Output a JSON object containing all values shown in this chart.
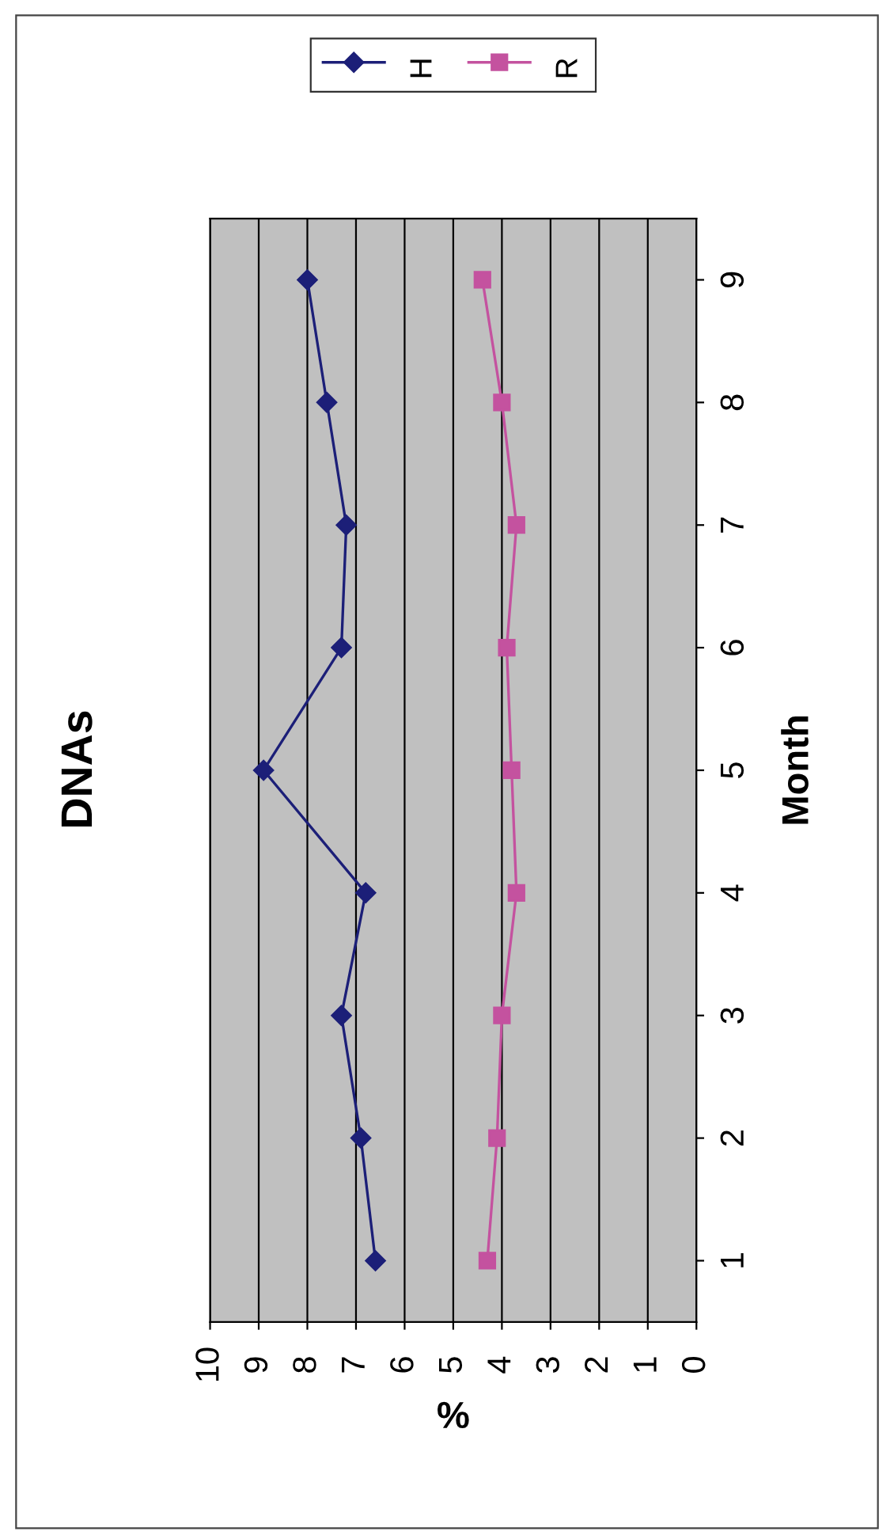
{
  "chart_data": {
    "type": "line",
    "title": "DNAs",
    "xlabel": "%",
    "ylabel": "Month",
    "series": [
      {
        "name": "H",
        "color": "#1c1f78",
        "marker": "diamond",
        "x": [
          6.6,
          6.9,
          7.3,
          6.8,
          8.9,
          7.3,
          7.2,
          7.6,
          8.0
        ],
        "values": [
          1,
          2,
          3,
          4,
          5,
          6,
          7,
          8,
          9
        ]
      },
      {
        "name": "R",
        "color": "#c4529f",
        "marker": "square",
        "x": [
          4.3,
          4.1,
          4.0,
          3.7,
          3.8,
          3.9,
          3.7,
          4.0,
          4.4
        ],
        "values": [
          1,
          2,
          3,
          4,
          5,
          6,
          7,
          8,
          9
        ]
      }
    ],
    "xlim": [
      10,
      0
    ],
    "xticks": [
      0,
      1,
      2,
      3,
      4,
      5,
      6,
      7,
      8,
      9,
      10
    ],
    "ylim": [
      0.5,
      9.5
    ],
    "yticks": [
      1,
      2,
      3,
      4,
      5,
      6,
      7,
      8,
      9
    ],
    "grid": "x",
    "legend": "top",
    "line_style": "solid"
  }
}
